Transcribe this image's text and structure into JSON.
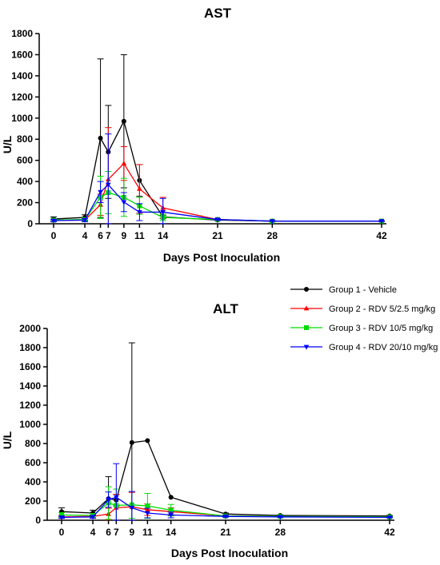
{
  "chart_data": [
    {
      "type": "line",
      "title": "AST",
      "xlabel": "Days Post Inoculation",
      "ylabel": "U/L",
      "xlim": [
        0,
        42
      ],
      "ylim": [
        0,
        1800
      ],
      "xticks": [
        0,
        4,
        6,
        7,
        9,
        11,
        14,
        21,
        28,
        42
      ],
      "yticks": [
        0,
        200,
        400,
        600,
        800,
        1000,
        1200,
        1400,
        1600,
        1800
      ],
      "series": [
        {
          "name": "Group 1 - Vehicle",
          "color": "#000000",
          "marker": "circle",
          "x": [
            0,
            4,
            6,
            7,
            9,
            11,
            14,
            21,
            28,
            42
          ],
          "y": [
            45,
            60,
            810,
            680,
            970,
            410,
            65,
            35,
            25,
            25
          ],
          "err": [
            20,
            25,
            750,
            440,
            630,
            150,
            15,
            5,
            3,
            3
          ]
        },
        {
          "name": "Group 2 - RDV 5/2.5 mg/kg",
          "color": "#ff0000",
          "marker": "triangle-up",
          "x": [
            0,
            4,
            6,
            7,
            9,
            11,
            14,
            21,
            28,
            42
          ],
          "y": [
            30,
            35,
            180,
            420,
            570,
            330,
            150,
            40,
            25,
            25
          ],
          "err": [
            10,
            15,
            100,
            490,
            160,
            230,
            100,
            8,
            3,
            3
          ]
        },
        {
          "name": "Group 3 - RDV 10/5 mg/kg",
          "color": "#00dd00",
          "marker": "square",
          "x": [
            0,
            4,
            6,
            7,
            9,
            11,
            14,
            21,
            28,
            42
          ],
          "y": [
            35,
            40,
            250,
            295,
            250,
            170,
            60,
            40,
            25,
            25
          ],
          "err": [
            10,
            15,
            200,
            200,
            180,
            80,
            30,
            8,
            3,
            3
          ]
        },
        {
          "name": "Group 4 - RDV 20/10 mg/kg",
          "color": "#0000ff",
          "marker": "triangle-down",
          "x": [
            0,
            4,
            6,
            7,
            9,
            11,
            14,
            21,
            28,
            42
          ],
          "y": [
            30,
            35,
            300,
            370,
            205,
            110,
            110,
            40,
            25,
            25
          ],
          "err": [
            10,
            15,
            100,
            480,
            90,
            80,
            130,
            8,
            3,
            3
          ]
        }
      ]
    },
    {
      "type": "line",
      "title": "ALT",
      "xlabel": "Days Post Inoculation",
      "ylabel": "U/L",
      "xlim": [
        0,
        42
      ],
      "ylim": [
        0,
        2000
      ],
      "xticks": [
        0,
        4,
        6,
        7,
        9,
        11,
        14,
        21,
        28,
        42
      ],
      "yticks": [
        0,
        200,
        400,
        600,
        800,
        1000,
        1200,
        1400,
        1600,
        1800,
        2000
      ],
      "legend_position": "top-right",
      "series": [
        {
          "name": "Group 1 - Vehicle",
          "color": "#000000",
          "marker": "circle",
          "x": [
            0,
            4,
            6,
            7,
            9,
            11,
            14,
            21,
            28,
            42
          ],
          "y": [
            90,
            75,
            225,
            210,
            810,
            830,
            240,
            65,
            50,
            45
          ],
          "err": [
            40,
            30,
            230,
            60,
            1040,
            0,
            0,
            10,
            5,
            5
          ]
        },
        {
          "name": "Group 2 - RDV 5/2.5 mg/kg",
          "color": "#ff0000",
          "marker": "triangle-up",
          "x": [
            0,
            4,
            6,
            7,
            9,
            11,
            14,
            21,
            28,
            42
          ],
          "y": [
            35,
            40,
            65,
            130,
            140,
            110,
            90,
            45,
            40,
            35
          ],
          "err": [
            15,
            15,
            60,
            140,
            150,
            60,
            40,
            8,
            5,
            5
          ]
        },
        {
          "name": "Group 3 - RDV 10/5 mg/kg",
          "color": "#00dd00",
          "marker": "square",
          "x": [
            0,
            4,
            6,
            7,
            9,
            11,
            14,
            21,
            28,
            42
          ],
          "y": [
            55,
            50,
            180,
            155,
            160,
            150,
            105,
            45,
            40,
            35
          ],
          "err": [
            25,
            20,
            170,
            170,
            140,
            130,
            60,
            8,
            5,
            5
          ]
        },
        {
          "name": "Group 4 - RDV 20/10 mg/kg",
          "color": "#0000ff",
          "marker": "triangle-down",
          "x": [
            0,
            4,
            6,
            7,
            9,
            11,
            14,
            21,
            28,
            42
          ],
          "y": [
            30,
            35,
            215,
            240,
            130,
            75,
            55,
            40,
            35,
            30
          ],
          "err": [
            10,
            15,
            80,
            350,
            170,
            50,
            30,
            8,
            5,
            5
          ]
        }
      ]
    }
  ]
}
